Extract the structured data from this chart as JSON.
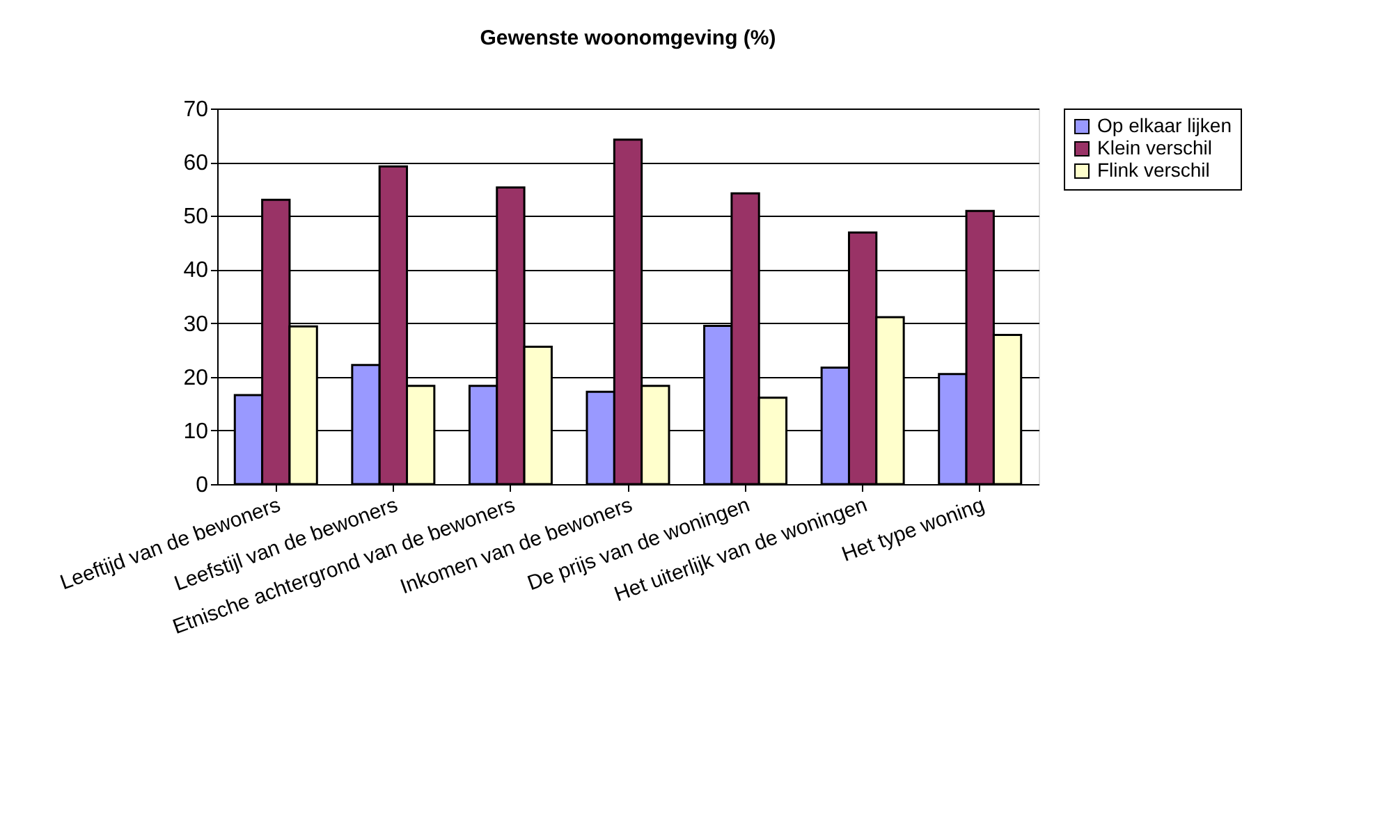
{
  "chart_data": {
    "type": "bar",
    "title": "Gewenste woonomgeving (%)",
    "categories": [
      "Leeftijd van de bewoners",
      "Leefstijl van de bewoners",
      "Etnische achtergrond van de bewoners",
      "Inkomen van de bewoners",
      "De prijs van de woningen",
      "Het uiterlijk van de woningen",
      "Het type woning"
    ],
    "series": [
      {
        "name": "Op elkaar lijken",
        "color": "#9999ff",
        "values": [
          16.6,
          22.2,
          18.3,
          17.2,
          29.5,
          21.7,
          20.5
        ]
      },
      {
        "name": "Klein verschil",
        "color": "#993366",
        "values": [
          53,
          59.2,
          55.3,
          64.2,
          54.2,
          46.9,
          50.9
        ]
      },
      {
        "name": "Flink verschil",
        "color": "#ffffcc",
        "values": [
          29.4,
          18.3,
          25.6,
          18.3,
          16.1,
          31.1,
          27.8
        ]
      }
    ],
    "ylim": [
      0,
      70
    ],
    "yticks": [
      0,
      10,
      20,
      30,
      40,
      50,
      60,
      70
    ],
    "grid": "y",
    "legend": "right"
  }
}
